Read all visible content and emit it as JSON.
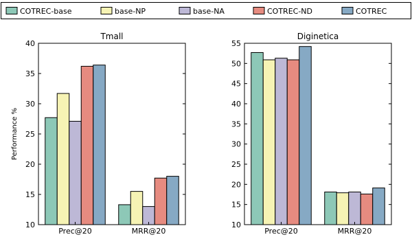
{
  "figure": {
    "legend_placement": "top (above both panels)",
    "series_colors": {
      "COTREC-base": "#8dc8b7",
      "base-NP": "#f6f3b4",
      "base-NA": "#bdb8d6",
      "COTREC-ND": "#e68b80",
      "COTREC": "#86a9c4"
    }
  },
  "chart_data": [
    {
      "type": "bar",
      "title": "Tmall",
      "xlabel": "",
      "ylabel": "Performance %",
      "categories": [
        "Prec@20",
        "MRR@20"
      ],
      "ylim": [
        10,
        40
      ],
      "yticks": [
        10,
        15,
        20,
        25,
        30,
        35,
        40
      ],
      "grid": false,
      "series": [
        {
          "name": "COTREC-base",
          "values": [
            27.7,
            13.3
          ]
        },
        {
          "name": "base-NP",
          "values": [
            31.7,
            15.5
          ]
        },
        {
          "name": "base-NA",
          "values": [
            27.1,
            13.0
          ]
        },
        {
          "name": "COTREC-ND",
          "values": [
            36.2,
            17.7
          ]
        },
        {
          "name": "COTREC",
          "values": [
            36.4,
            18.0
          ]
        }
      ]
    },
    {
      "type": "bar",
      "title": "Diginetica",
      "xlabel": "",
      "ylabel": "",
      "categories": [
        "Prec@20",
        "MRR@20"
      ],
      "ylim": [
        10,
        55
      ],
      "yticks": [
        10,
        15,
        20,
        25,
        30,
        35,
        40,
        45,
        50,
        55
      ],
      "grid": false,
      "series": [
        {
          "name": "COTREC-base",
          "values": [
            52.7,
            18.1
          ]
        },
        {
          "name": "base-NP",
          "values": [
            50.9,
            17.9
          ]
        },
        {
          "name": "base-NA",
          "values": [
            51.3,
            18.1
          ]
        },
        {
          "name": "COTREC-ND",
          "values": [
            50.9,
            17.6
          ]
        },
        {
          "name": "COTREC",
          "values": [
            54.2,
            19.1
          ]
        }
      ]
    }
  ]
}
